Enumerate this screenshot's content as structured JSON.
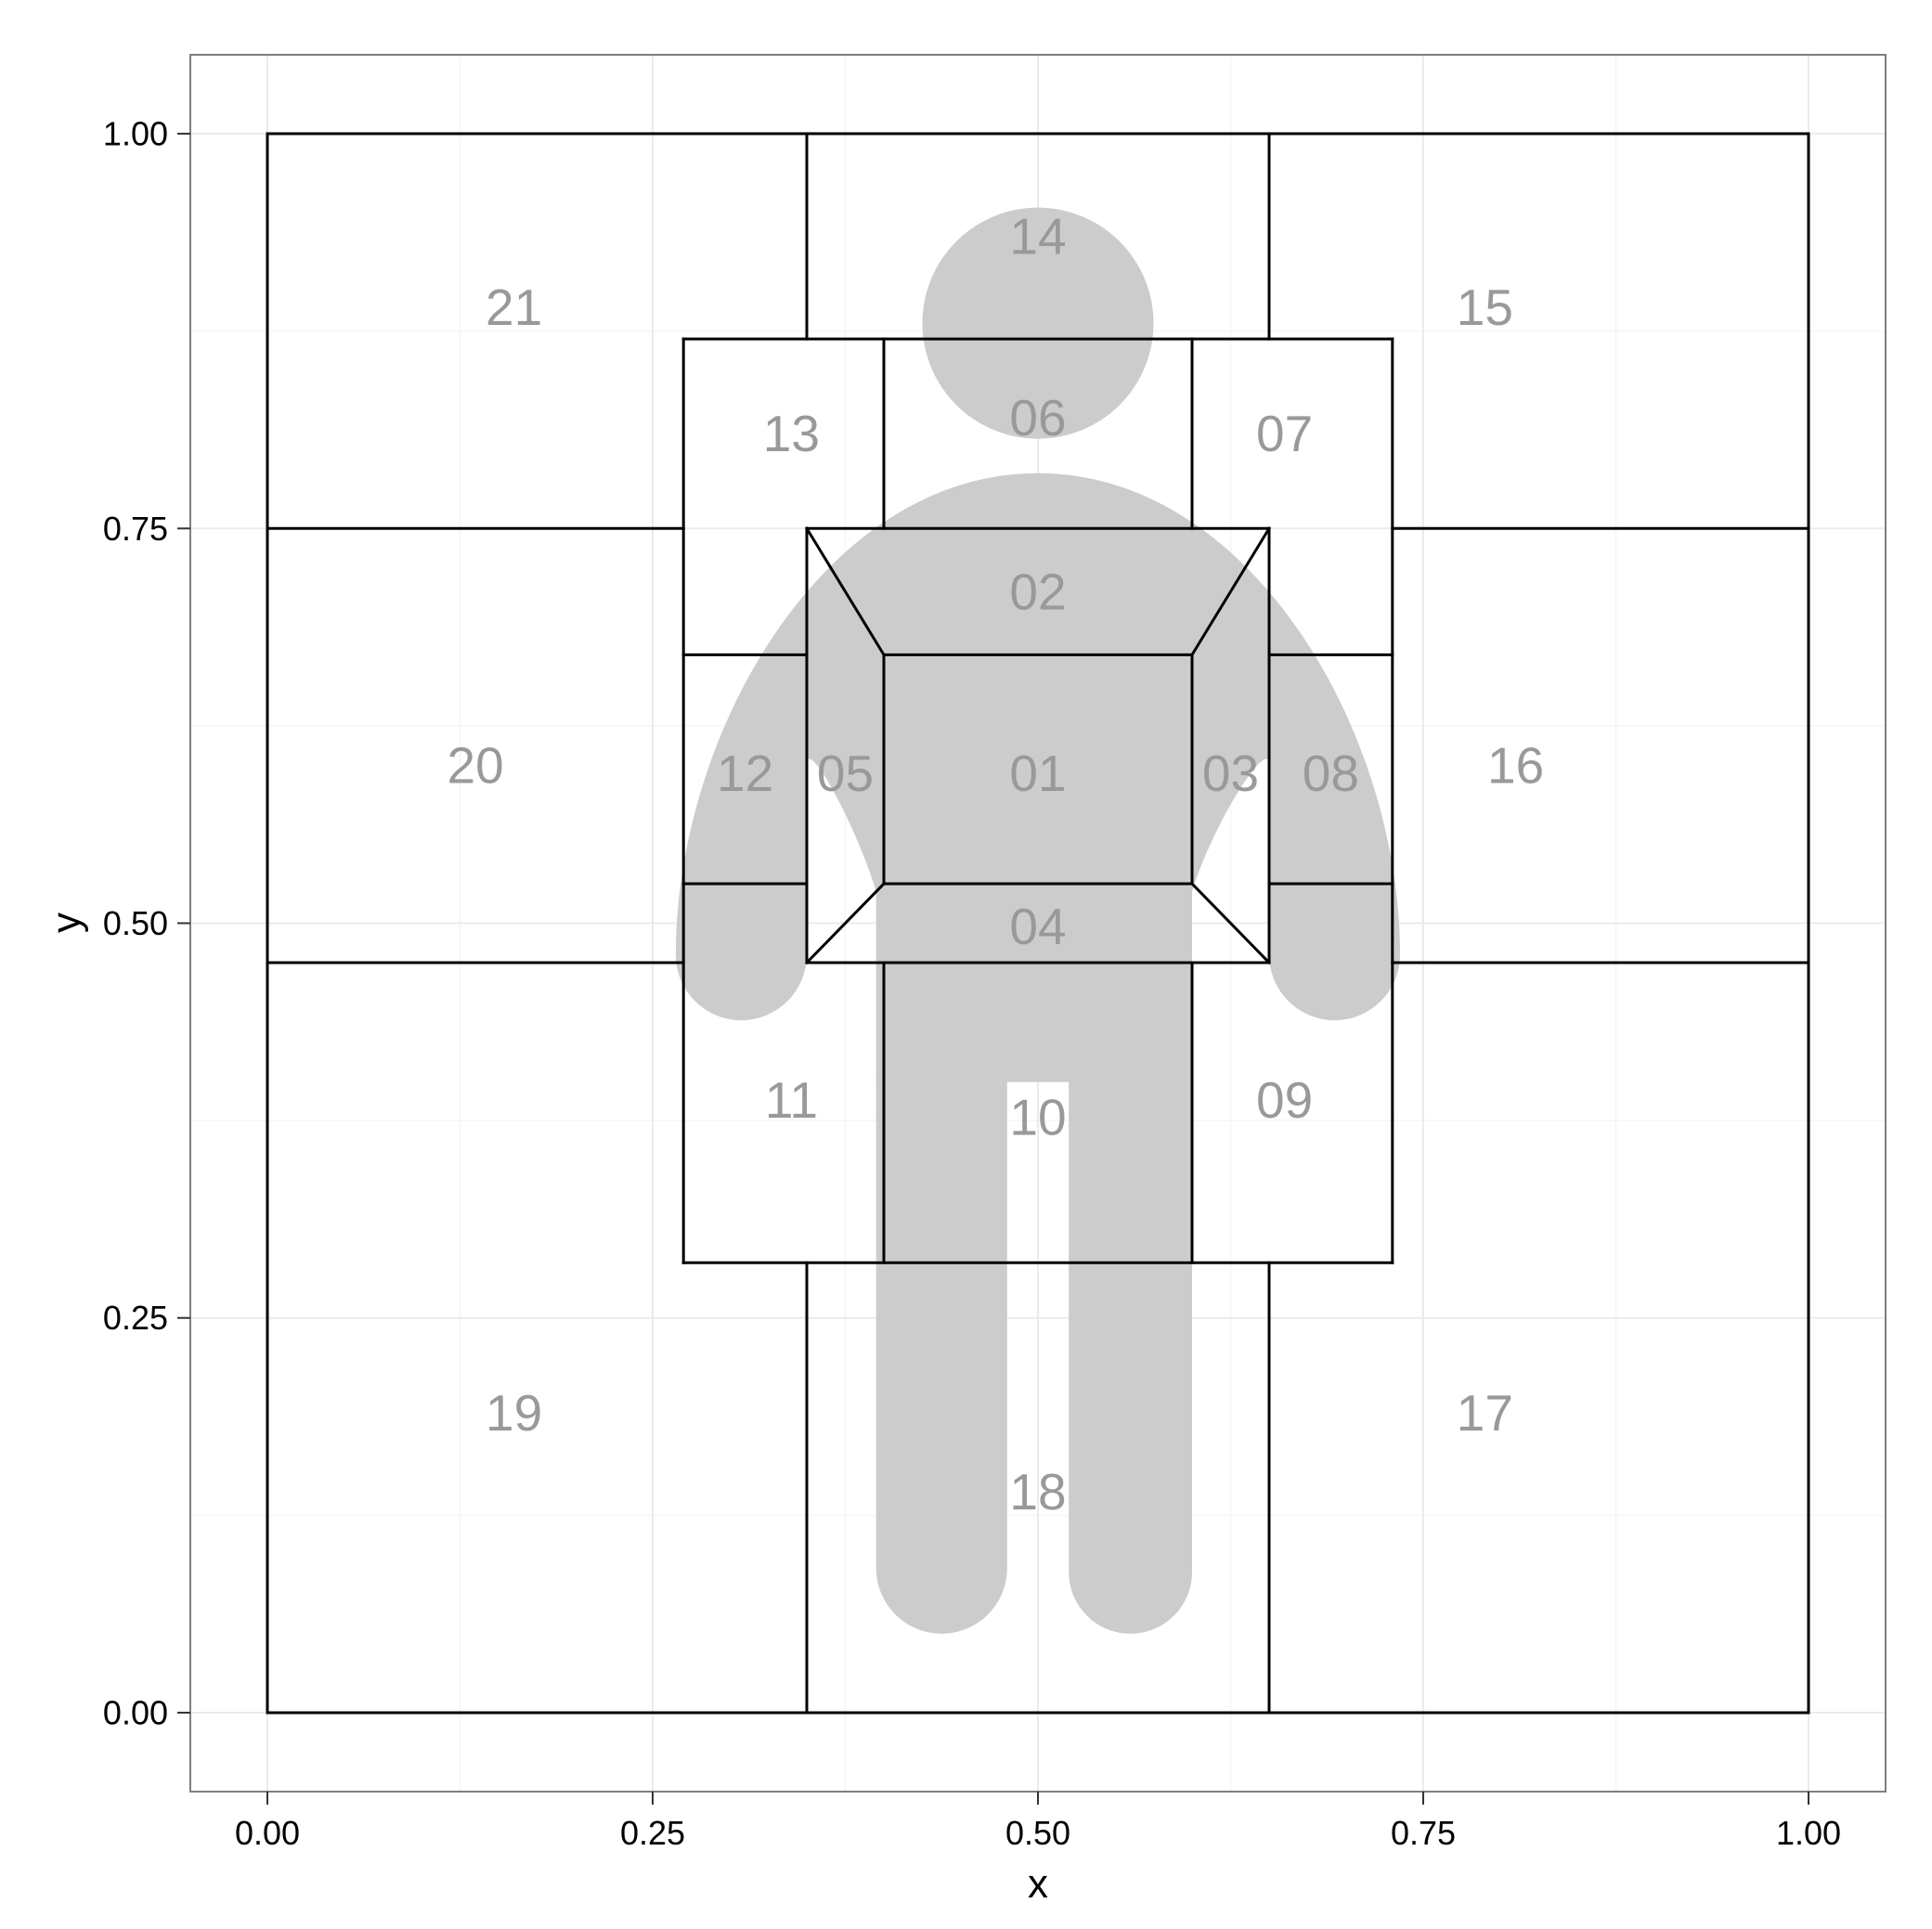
{
  "chart_data": {
    "type": "diagram-regions",
    "xlabel": "x",
    "ylabel": "y",
    "xlim": [
      -0.05,
      1.05
    ],
    "ylim": [
      -0.05,
      1.05
    ],
    "x_ticks": [
      0.0,
      0.25,
      0.5,
      0.75,
      1.0
    ],
    "x_tick_labels": [
      "0.00",
      "0.25",
      "0.50",
      "0.75",
      "1.00"
    ],
    "y_ticks": [
      0.0,
      0.25,
      0.5,
      0.75,
      1.0
    ],
    "y_tick_labels": [
      "0.00",
      "0.25",
      "0.50",
      "0.75",
      "1.00"
    ],
    "grid": true,
    "colors": {
      "panel_background": "#ffffff",
      "grid_major": "#ebebeb",
      "grid_minor": "#f5f5f5",
      "panel_border": "#7f7f7f",
      "region_line": "#000000",
      "figure_fill": "#cccccc",
      "label_color": "#999999"
    },
    "figure": {
      "head": {
        "cx": 0.5,
        "cy": 0.88,
        "r": 0.075
      },
      "shoulder_top_y": 0.785,
      "arm_left": {
        "outer_x": 0.265,
        "inner_x": 0.35,
        "bottom_y": 0.435
      },
      "arm_right": {
        "outer_x": 0.735,
        "inner_x": 0.65,
        "bottom_y": 0.435
      },
      "torso": {
        "x0": 0.395,
        "x1": 0.6
      },
      "leg_left": {
        "x0": 0.395,
        "x1": 0.48,
        "bottom_y": 0.05
      },
      "leg_right": {
        "x0": 0.52,
        "x1": 0.6,
        "bottom_y": 0.05
      },
      "crotch_y": 0.4
    },
    "lines": [
      [
        [
          0.0,
          0.0
        ],
        [
          1.0,
          0.0
        ]
      ],
      [
        [
          1.0,
          0.0
        ],
        [
          1.0,
          1.0
        ]
      ],
      [
        [
          1.0,
          1.0
        ],
        [
          0.0,
          1.0
        ]
      ],
      [
        [
          0.0,
          1.0
        ],
        [
          0.0,
          0.0
        ]
      ],
      [
        [
          0.35,
          0.0
        ],
        [
          0.35,
          0.285
        ]
      ],
      [
        [
          0.65,
          0.0
        ],
        [
          0.65,
          0.285
        ]
      ],
      [
        [
          0.35,
          0.87
        ],
        [
          0.35,
          1.0
        ]
      ],
      [
        [
          0.65,
          0.87
        ],
        [
          0.65,
          1.0
        ]
      ],
      [
        [
          0.0,
          0.75
        ],
        [
          0.27,
          0.75
        ]
      ],
      [
        [
          0.73,
          0.75
        ],
        [
          1.0,
          0.75
        ]
      ],
      [
        [
          0.0,
          0.475
        ],
        [
          0.27,
          0.475
        ]
      ],
      [
        [
          0.73,
          0.475
        ],
        [
          1.0,
          0.475
        ]
      ],
      [
        [
          0.27,
          0.285
        ],
        [
          0.73,
          0.285
        ]
      ],
      [
        [
          0.73,
          0.285
        ],
        [
          0.73,
          0.87
        ]
      ],
      [
        [
          0.73,
          0.87
        ],
        [
          0.27,
          0.87
        ]
      ],
      [
        [
          0.27,
          0.87
        ],
        [
          0.27,
          0.285
        ]
      ],
      [
        [
          0.4,
          0.285
        ],
        [
          0.4,
          0.475
        ]
      ],
      [
        [
          0.6,
          0.285
        ],
        [
          0.6,
          0.475
        ]
      ],
      [
        [
          0.4,
          0.75
        ],
        [
          0.4,
          0.87
        ]
      ],
      [
        [
          0.6,
          0.75
        ],
        [
          0.6,
          0.87
        ]
      ],
      [
        [
          0.27,
          0.67
        ],
        [
          0.35,
          0.67
        ]
      ],
      [
        [
          0.65,
          0.67
        ],
        [
          0.73,
          0.67
        ]
      ],
      [
        [
          0.27,
          0.525
        ],
        [
          0.35,
          0.525
        ]
      ],
      [
        [
          0.65,
          0.525
        ],
        [
          0.73,
          0.525
        ]
      ],
      [
        [
          0.35,
          0.475
        ],
        [
          0.65,
          0.475
        ]
      ],
      [
        [
          0.65,
          0.475
        ],
        [
          0.65,
          0.75
        ]
      ],
      [
        [
          0.65,
          0.75
        ],
        [
          0.35,
          0.75
        ]
      ],
      [
        [
          0.35,
          0.75
        ],
        [
          0.35,
          0.475
        ]
      ],
      [
        [
          0.4,
          0.525
        ],
        [
          0.6,
          0.525
        ]
      ],
      [
        [
          0.6,
          0.525
        ],
        [
          0.6,
          0.67
        ]
      ],
      [
        [
          0.6,
          0.67
        ],
        [
          0.4,
          0.67
        ]
      ],
      [
        [
          0.4,
          0.67
        ],
        [
          0.4,
          0.525
        ]
      ],
      [
        [
          0.35,
          0.75
        ],
        [
          0.4,
          0.67
        ]
      ],
      [
        [
          0.65,
          0.75
        ],
        [
          0.6,
          0.67
        ]
      ],
      [
        [
          0.35,
          0.475
        ],
        [
          0.4,
          0.525
        ]
      ],
      [
        [
          0.65,
          0.475
        ],
        [
          0.6,
          0.525
        ]
      ]
    ],
    "regions": [
      {
        "label": "01",
        "x": 0.5,
        "y": 0.595
      },
      {
        "label": "02",
        "x": 0.5,
        "y": 0.71
      },
      {
        "label": "03",
        "x": 0.625,
        "y": 0.595
      },
      {
        "label": "04",
        "x": 0.5,
        "y": 0.498
      },
      {
        "label": "05",
        "x": 0.375,
        "y": 0.595
      },
      {
        "label": "06",
        "x": 0.5,
        "y": 0.82
      },
      {
        "label": "07",
        "x": 0.66,
        "y": 0.81
      },
      {
        "label": "08",
        "x": 0.69,
        "y": 0.595
      },
      {
        "label": "09",
        "x": 0.66,
        "y": 0.388
      },
      {
        "label": "10",
        "x": 0.5,
        "y": 0.377
      },
      {
        "label": "11",
        "x": 0.34,
        "y": 0.388
      },
      {
        "label": "12",
        "x": 0.31,
        "y": 0.595
      },
      {
        "label": "13",
        "x": 0.34,
        "y": 0.81
      },
      {
        "label": "14",
        "x": 0.5,
        "y": 0.935
      },
      {
        "label": "15",
        "x": 0.79,
        "y": 0.89
      },
      {
        "label": "16",
        "x": 0.81,
        "y": 0.6
      },
      {
        "label": "17",
        "x": 0.79,
        "y": 0.19
      },
      {
        "label": "18",
        "x": 0.5,
        "y": 0.14
      },
      {
        "label": "19",
        "x": 0.16,
        "y": 0.19
      },
      {
        "label": "20",
        "x": 0.135,
        "y": 0.6
      },
      {
        "label": "21",
        "x": 0.16,
        "y": 0.89
      }
    ]
  }
}
